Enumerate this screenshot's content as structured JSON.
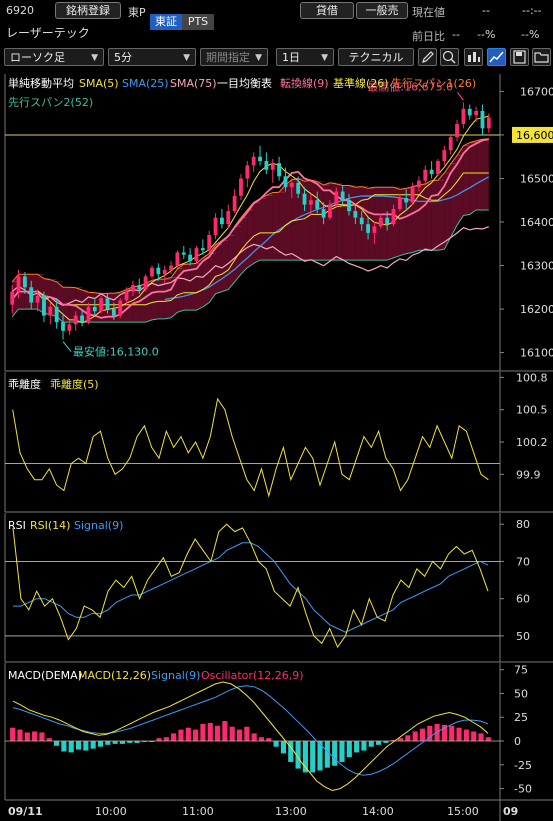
{
  "header": {
    "code": "6920",
    "register_label": "銘柄登録",
    "market": "東P",
    "name": "レーザーテック",
    "venue_tse": "東証",
    "venue_pts": "PTS",
    "credit_label": "貸借",
    "general_label": "一般売",
    "current_price_label": "現在値",
    "current_price_value": "--",
    "current_time_value": "--:--",
    "prev_change_label": "前日比",
    "prev_change_value": "--",
    "prev_change_pct": "--%",
    "prev_change_pct2": "--%"
  },
  "toolbar": {
    "chart_type": "ローソク足",
    "interval": "5分",
    "period": "期間指定",
    "span": "1日",
    "technical": "テクニカル",
    "icons": [
      "pencil-icon",
      "zoom-icon",
      "compare-icon",
      "line-chart-icon",
      "save-icon",
      "folder-icon"
    ]
  },
  "colors": {
    "up": "#ff2a6d",
    "down": "#25d0c8",
    "sma5": "#f2e33a",
    "sma25": "#3c9cf2",
    "sma75": "#f7a7c0",
    "tenkan": "#ff6fa3",
    "kijun": "#f2e33a",
    "span1": "#ff7a2a",
    "span2": "#37c0a3",
    "cloud_up": "#7a1030",
    "cloud_down": "#0f5a5a",
    "macd_line": "#f2e33a",
    "signal": "#3c9cf2",
    "osc_label": "#ff2a6d"
  },
  "chart_data": [
    {
      "type": "candlestick",
      "panel": "price",
      "legend": [
        {
          "label": "単純移動平均",
          "color": "#ffffff"
        },
        {
          "label": "SMA(5)",
          "color": "#f2e33a"
        },
        {
          "label": "SMA(25)",
          "color": "#3c9cf2"
        },
        {
          "label": "SMA(75)",
          "color": "#f7a7c0"
        },
        {
          "label": "一目均衡表",
          "color": "#ffffff"
        },
        {
          "label": "転換線(9)",
          "color": "#ff6fa3"
        },
        {
          "label": "基準線(26)",
          "color": "#f2e33a"
        },
        {
          "label": "先行スパン1(26)",
          "color": "#ff7a2a"
        },
        {
          "label": "先行スパン2(52)",
          "color": "#37c0a3"
        }
      ],
      "y_ticks": [
        "16700",
        "16600",
        "16500",
        "16400",
        "16300",
        "16200",
        "16100"
      ],
      "ylim": [
        16060,
        16740
      ],
      "reference_line": {
        "value": 16600,
        "label": "16,600"
      },
      "max_annotation": "最高値:16,675.0",
      "min_annotation": "最安値:16,130.0",
      "ohlc": [
        [
          16210,
          16255,
          16190,
          16240
        ],
        [
          16240,
          16290,
          16225,
          16275
        ],
        [
          16275,
          16285,
          16235,
          16250
        ],
        [
          16250,
          16265,
          16200,
          16215
        ],
        [
          16215,
          16245,
          16195,
          16230
        ],
        [
          16230,
          16240,
          16170,
          16185
        ],
        [
          16185,
          16215,
          16165,
          16205
        ],
        [
          16205,
          16225,
          16155,
          16170
        ],
        [
          16170,
          16190,
          16130,
          16150
        ],
        [
          16150,
          16175,
          16140,
          16165
        ],
        [
          16165,
          16195,
          16150,
          16185
        ],
        [
          16185,
          16200,
          16160,
          16170
        ],
        [
          16170,
          16215,
          16165,
          16205
        ],
        [
          16205,
          16225,
          16185,
          16195
        ],
        [
          16195,
          16230,
          16190,
          16225
        ],
        [
          16225,
          16235,
          16190,
          16200
        ],
        [
          16200,
          16215,
          16175,
          16185
        ],
        [
          16185,
          16225,
          16180,
          16220
        ],
        [
          16220,
          16250,
          16210,
          16240
        ],
        [
          16240,
          16265,
          16230,
          16255
        ],
        [
          16255,
          16270,
          16235,
          16245
        ],
        [
          16245,
          16280,
          16240,
          16275
        ],
        [
          16275,
          16300,
          16270,
          16295
        ],
        [
          16295,
          16305,
          16265,
          16280
        ],
        [
          16280,
          16300,
          16260,
          16290
        ],
        [
          16290,
          16310,
          16280,
          16300
        ],
        [
          16300,
          16335,
          16295,
          16330
        ],
        [
          16330,
          16345,
          16315,
          16325
        ],
        [
          16325,
          16340,
          16300,
          16310
        ],
        [
          16310,
          16345,
          16305,
          16340
        ],
        [
          16340,
          16360,
          16325,
          16335
        ],
        [
          16335,
          16380,
          16330,
          16370
        ],
        [
          16370,
          16420,
          16360,
          16410
        ],
        [
          16410,
          16430,
          16385,
          16395
        ],
        [
          16395,
          16440,
          16385,
          16425
        ],
        [
          16425,
          16475,
          16420,
          16460
        ],
        [
          16460,
          16510,
          16450,
          16500
        ],
        [
          16500,
          16540,
          16480,
          16530
        ],
        [
          16530,
          16560,
          16515,
          16550
        ],
        [
          16550,
          16575,
          16530,
          16540
        ],
        [
          16540,
          16560,
          16510,
          16520
        ],
        [
          16520,
          16545,
          16490,
          16535
        ],
        [
          16535,
          16550,
          16495,
          16505
        ],
        [
          16505,
          16525,
          16470,
          16480
        ],
        [
          16480,
          16500,
          16455,
          16490
        ],
        [
          16490,
          16505,
          16455,
          16465
        ],
        [
          16465,
          16480,
          16425,
          16440
        ],
        [
          16440,
          16465,
          16415,
          16450
        ],
        [
          16450,
          16470,
          16420,
          16430
        ],
        [
          16430,
          16445,
          16395,
          16410
        ],
        [
          16410,
          16450,
          16405,
          16440
        ],
        [
          16440,
          16480,
          16435,
          16470
        ],
        [
          16470,
          16485,
          16440,
          16450
        ],
        [
          16450,
          16465,
          16415,
          16425
        ],
        [
          16425,
          16440,
          16395,
          16410
        ],
        [
          16410,
          16425,
          16380,
          16395
        ],
        [
          16395,
          16410,
          16360,
          16375
        ],
        [
          16375,
          16400,
          16350,
          16390
        ],
        [
          16390,
          16420,
          16385,
          16410
        ],
        [
          16410,
          16425,
          16380,
          16395
        ],
        [
          16395,
          16440,
          16390,
          16430
        ],
        [
          16430,
          16465,
          16425,
          16455
        ],
        [
          16455,
          16475,
          16430,
          16445
        ],
        [
          16445,
          16490,
          16440,
          16480
        ],
        [
          16480,
          16505,
          16470,
          16495
        ],
        [
          16495,
          16530,
          16485,
          16520
        ],
        [
          16520,
          16540,
          16500,
          16510
        ],
        [
          16510,
          16545,
          16505,
          16540
        ],
        [
          16540,
          16575,
          16530,
          16565
        ],
        [
          16565,
          16600,
          16555,
          16595
        ],
        [
          16595,
          16635,
          16585,
          16625
        ],
        [
          16625,
          16675,
          16615,
          16660
        ],
        [
          16660,
          16670,
          16635,
          16645
        ],
        [
          16645,
          16665,
          16630,
          16655
        ],
        [
          16655,
          16670,
          16600,
          16615
        ],
        [
          16615,
          16650,
          16605,
          16640
        ]
      ]
    },
    {
      "type": "line",
      "panel": "deviation",
      "legend": [
        {
          "label": "乖離度",
          "color": "#ffffff"
        },
        {
          "label": "乖離度(5)",
          "color": "#f2e33a"
        }
      ],
      "y_ticks": [
        "100.8",
        "100.5",
        "100.2",
        "99.9"
      ],
      "ylim": [
        99.55,
        100.85
      ],
      "reference_line": {
        "value": 100.0
      },
      "values": [
        100.5,
        100.1,
        99.95,
        99.85,
        99.85,
        99.95,
        99.8,
        99.75,
        100.0,
        100.05,
        100.0,
        100.25,
        100.3,
        100.05,
        99.9,
        99.95,
        100.05,
        100.25,
        100.35,
        100.15,
        100.05,
        100.3,
        100.15,
        100.25,
        100.1,
        100.2,
        100.05,
        100.25,
        100.6,
        100.5,
        100.25,
        100.05,
        99.85,
        99.75,
        99.95,
        99.7,
        99.95,
        100.15,
        99.85,
        100.0,
        100.15,
        100.05,
        99.8,
        100.0,
        100.2,
        99.9,
        99.85,
        100.05,
        100.25,
        100.15,
        100.3,
        100.05,
        99.95,
        99.75,
        99.85,
        100.05,
        100.25,
        100.15,
        100.35,
        100.2,
        100.05,
        100.35,
        100.3,
        100.1,
        99.9,
        99.85
      ],
      "series_color": "#f2e33a"
    },
    {
      "type": "line",
      "panel": "rsi",
      "legend": [
        {
          "label": "RSI",
          "color": "#ffffff"
        },
        {
          "label": "RSI(14)",
          "color": "#f2e33a"
        },
        {
          "label": "Signal(9)",
          "color": "#3c9cf2"
        }
      ],
      "y_ticks": [
        "80",
        "70",
        "60",
        "50"
      ],
      "ylim": [
        43,
        83
      ],
      "reference_lines": [
        70,
        50
      ],
      "rsi": [
        79,
        60,
        57,
        62,
        58,
        60,
        55,
        49,
        52,
        58,
        57,
        55,
        62,
        65,
        63,
        66,
        60,
        65,
        68,
        71,
        66,
        67,
        72,
        76,
        73,
        70,
        78,
        80,
        78,
        79,
        75,
        70,
        68,
        62,
        60,
        58,
        63,
        56,
        50,
        48,
        52,
        47,
        50,
        57,
        53,
        60,
        55,
        54,
        61,
        65,
        63,
        68,
        66,
        70,
        68,
        72,
        74,
        72,
        73,
        68,
        62
      ],
      "signal": [
        58,
        58,
        59,
        60,
        60,
        59,
        58,
        56,
        55,
        55,
        56,
        56,
        57,
        59,
        60,
        61,
        61,
        62,
        63,
        64,
        65,
        66,
        67,
        68,
        69,
        70,
        71,
        73,
        74,
        75,
        75,
        74,
        72,
        70,
        67,
        64,
        62,
        60,
        57,
        55,
        53,
        52,
        51,
        52,
        53,
        54,
        55,
        56,
        57,
        59,
        60,
        61,
        62,
        63,
        64,
        66,
        67,
        68,
        69,
        70,
        69
      ],
      "rsi_color": "#f2e33a",
      "signal_color": "#3c9cf2"
    },
    {
      "type": "bar",
      "panel": "macd",
      "legend": [
        {
          "label": "MACD(DEMA)",
          "color": "#ffffff"
        },
        {
          "label": "MACD(12,26)",
          "color": "#f2e33a"
        },
        {
          "label": "Signal(9)",
          "color": "#3c9cf2"
        },
        {
          "label": "Oscillator(12,26,9)",
          "color": "#ff2a6d"
        }
      ],
      "y_ticks": [
        "75",
        "50",
        "25",
        "0",
        "-25",
        "-50"
      ],
      "ylim": [
        -62,
        82
      ],
      "reference_line": {
        "value": 0
      },
      "oscillator": [
        14,
        12,
        9,
        10,
        9,
        3,
        -5,
        -11,
        -12,
        -9,
        -10,
        -8,
        -6,
        -4,
        -3,
        -3,
        -2,
        -2,
        -1,
        -1,
        3,
        4,
        8,
        12,
        14,
        12,
        18,
        19,
        16,
        21,
        15,
        12,
        15,
        8,
        4,
        3,
        -6,
        -13,
        -22,
        -29,
        -33,
        -33,
        -31,
        -28,
        -26,
        -22,
        -17,
        -12,
        -10,
        -6,
        -4,
        -2,
        1,
        3,
        6,
        10,
        13,
        16,
        18,
        17,
        16,
        14,
        12,
        10,
        8,
        4
      ],
      "macd": [
        42,
        38,
        33,
        30,
        27,
        25,
        22,
        18,
        14,
        10,
        8,
        6,
        7,
        10,
        14,
        18,
        22,
        26,
        30,
        33,
        36,
        40,
        44,
        48,
        52,
        56,
        60,
        62,
        60,
        55,
        48,
        40,
        30,
        20,
        10,
        0,
        -10,
        -22,
        -32,
        -42,
        -48,
        -52,
        -50,
        -45,
        -38,
        -30,
        -22,
        -14,
        -6,
        0,
        6,
        12,
        18,
        22,
        26,
        28,
        30,
        28,
        25,
        20,
        15,
        8
      ],
      "signal": [
        35,
        33,
        30,
        27,
        24,
        21,
        18,
        16,
        13,
        11,
        9,
        8,
        8,
        9,
        11,
        13,
        16,
        19,
        22,
        25,
        28,
        31,
        34,
        37,
        40,
        43,
        46,
        50,
        54,
        57,
        58,
        57,
        53,
        47,
        40,
        33,
        25,
        17,
        9,
        0,
        -8,
        -16,
        -24,
        -30,
        -34,
        -36,
        -35,
        -32,
        -28,
        -23,
        -17,
        -11,
        -5,
        1,
        7,
        12,
        16,
        20,
        22,
        22,
        21,
        18
      ],
      "macd_color": "#f2e33a",
      "signal_color": "#3c9cf2",
      "osc_up_color": "#ff2a6d",
      "osc_down_color": "#25d0c8"
    }
  ],
  "x_axis": {
    "labels": [
      "09/11",
      "10:00",
      "11:00",
      "13:00",
      "14:00",
      "15:00",
      "09"
    ]
  }
}
